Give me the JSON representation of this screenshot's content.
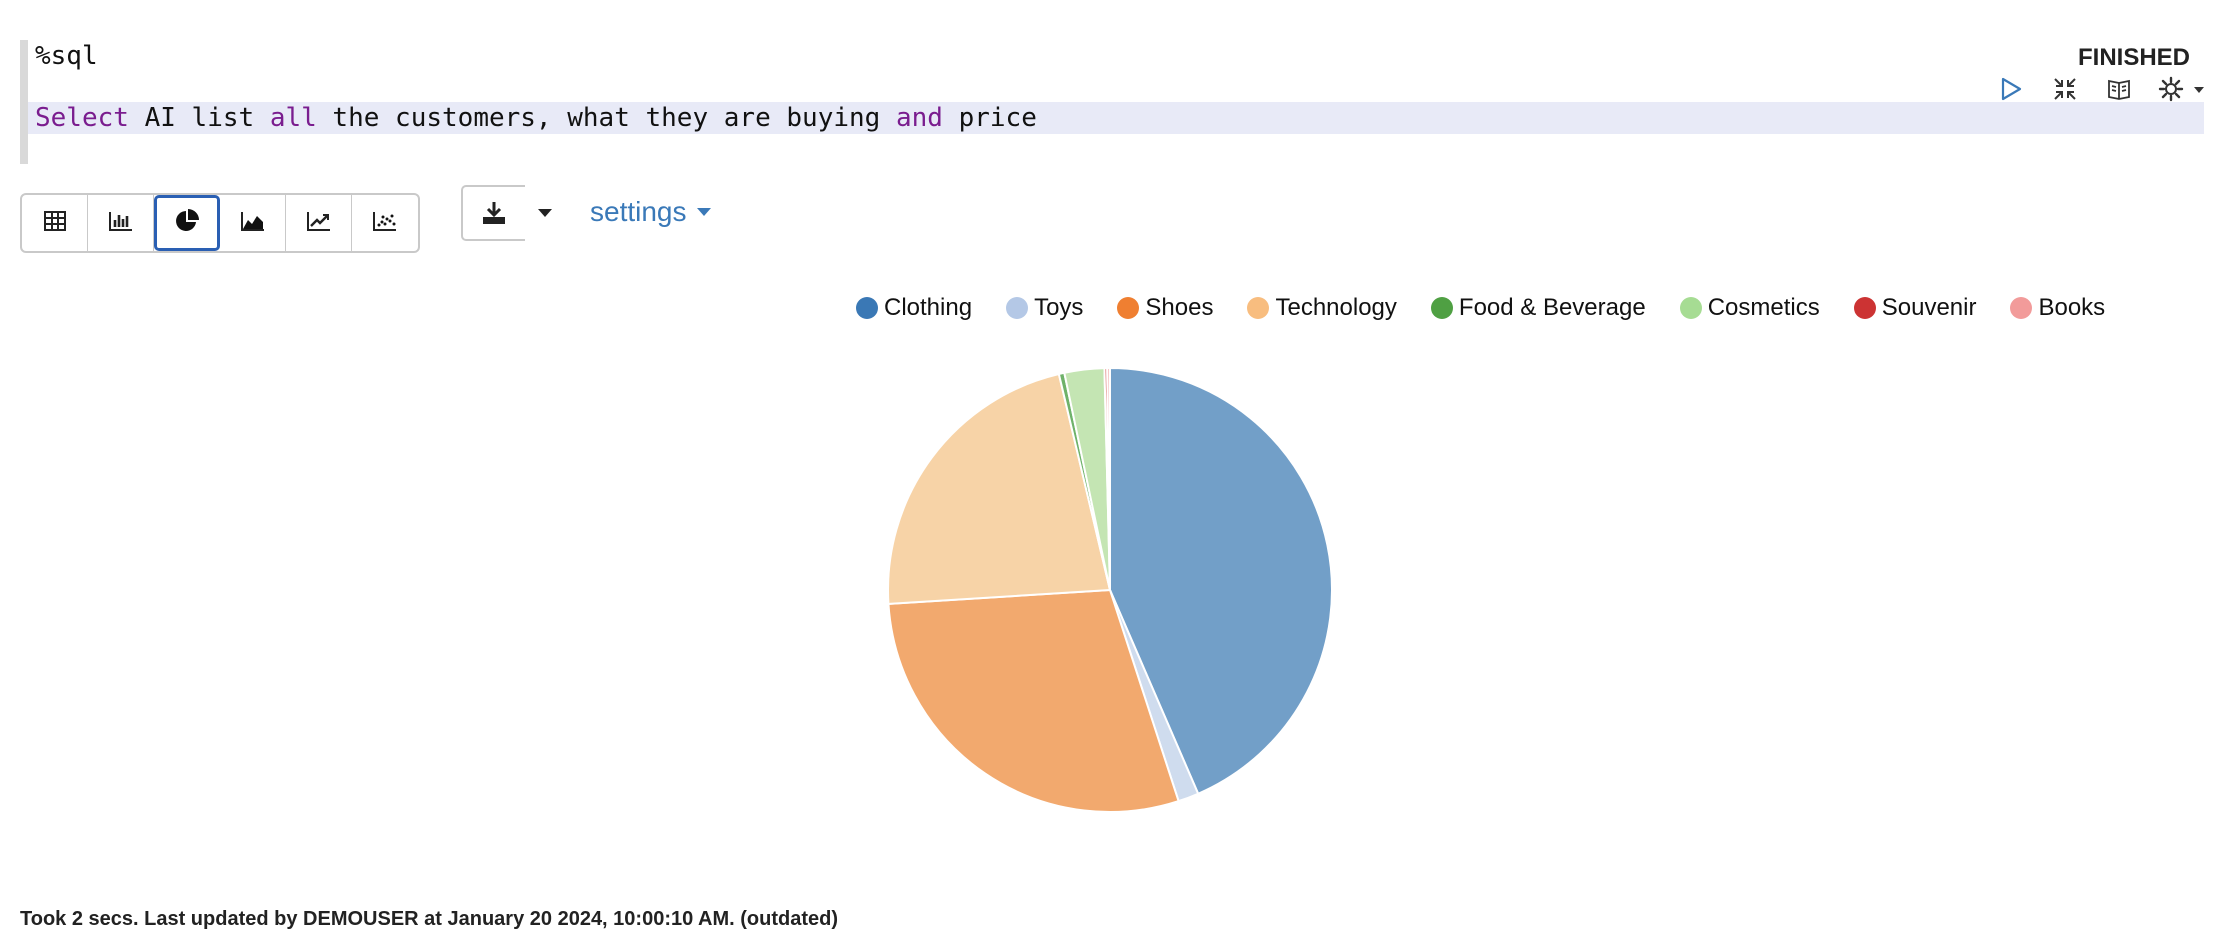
{
  "editor": {
    "line1": "%sql",
    "line2": [
      {
        "t": "Select",
        "kw": true
      },
      {
        "t": " AI list ",
        "kw": false
      },
      {
        "t": "all",
        "kw": true
      },
      {
        "t": " the customers, what they are buying ",
        "kw": false
      },
      {
        "t": "and",
        "kw": true
      },
      {
        "t": " price",
        "kw": false
      }
    ]
  },
  "status": "FINISHED",
  "toolbar": {
    "icons": [
      "play-icon",
      "collapse-icon",
      "book-icon",
      "gear-icon"
    ],
    "viz_buttons": [
      {
        "name": "table-view-button",
        "icon": "table-icon",
        "active": false
      },
      {
        "name": "bar-chart-button",
        "icon": "bar-chart-icon",
        "active": false
      },
      {
        "name": "pie-chart-button",
        "icon": "pie-chart-icon",
        "active": true
      },
      {
        "name": "area-chart-button",
        "icon": "area-chart-icon",
        "active": false
      },
      {
        "name": "line-chart-button",
        "icon": "line-chart-icon",
        "active": false
      },
      {
        "name": "scatter-chart-button",
        "icon": "scatter-chart-icon",
        "active": false
      }
    ],
    "settings_label": "settings"
  },
  "chart_data": {
    "type": "pie",
    "categories": [
      "Clothing",
      "Toys",
      "Shoes",
      "Technology",
      "Food & Beverage",
      "Cosmetics",
      "Souvenir",
      "Books"
    ],
    "values": [
      43.5,
      1.5,
      29.0,
      22.3,
      0.4,
      2.9,
      0.2,
      0.2
    ],
    "legend_colors": [
      "#3a78b5",
      "#b4c8e6",
      "#ef7f31",
      "#f8bd7f",
      "#4fa043",
      "#a6dc93",
      "#cc3333",
      "#f29b9a"
    ],
    "slice_colors": [
      "#729fc8",
      "#cfdcee",
      "#f2a96e",
      "#f7d3a7",
      "#6fb26a",
      "#c4e5b3",
      "#da6a66",
      "#f4b6b5"
    ],
    "legend_position": "top"
  },
  "footer": "Took 2 secs. Last updated by DEMOUSER at January 20 2024, 10:00:10 AM. (outdated)"
}
